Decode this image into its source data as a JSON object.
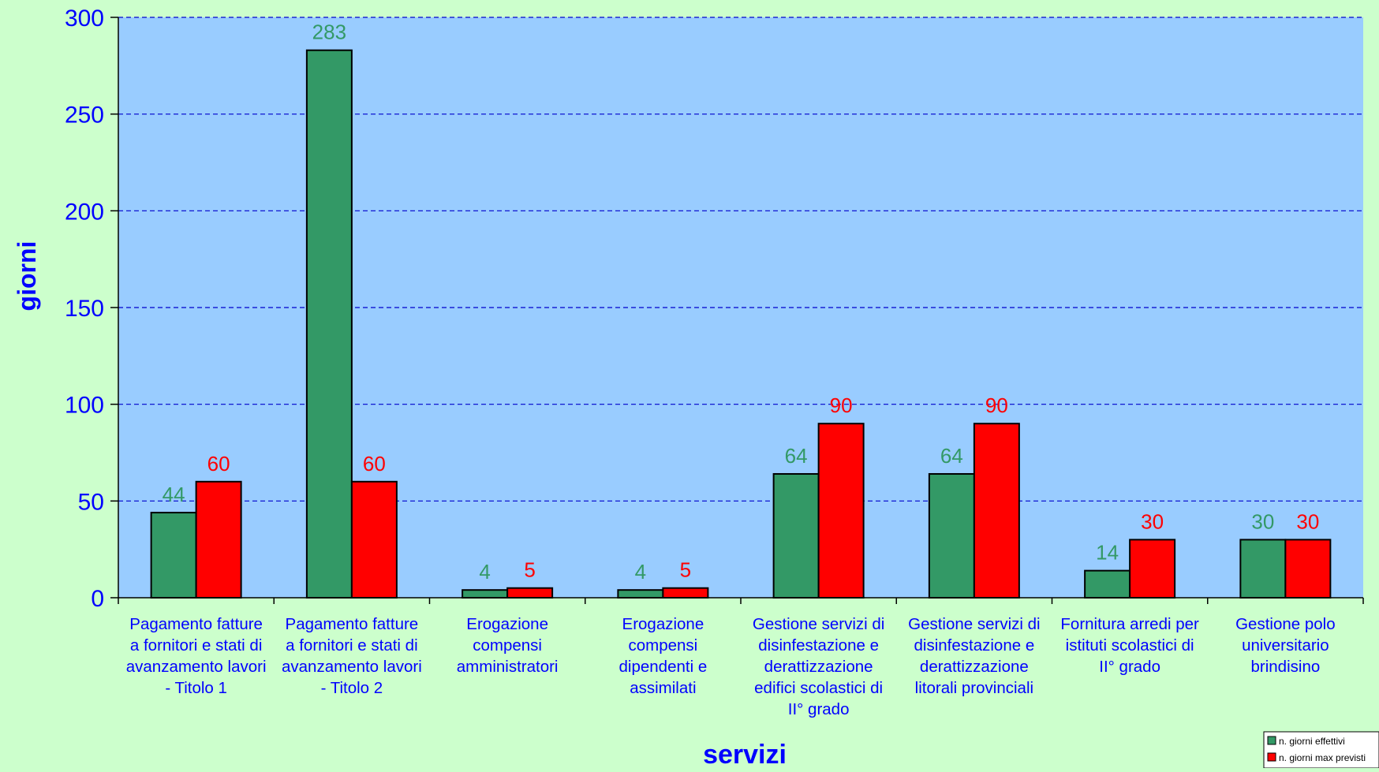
{
  "chart_data": {
    "type": "bar",
    "title": "",
    "xlabel": "servizi",
    "ylabel": "giorni",
    "ylim": [
      0,
      300
    ],
    "yticks": [
      0,
      50,
      100,
      150,
      200,
      250,
      300
    ],
    "grid": true,
    "legend_position": "bottom-right",
    "categories": [
      "Pagamento fatture a fornitori e stati di avanzamento lavori - Titolo 1",
      "Pagamento fatture a fornitori e stati di avanzamento lavori - Titolo 2",
      "Erogazione compensi amministratori",
      "Erogazione compensi dipendenti e assimilati",
      "Gestione servizi di disinfestazione e derattizzazione edifici scolastici di II° grado",
      "Gestione servizi di disinfestazione e derattizzazione litorali provinciali",
      "Fornitura arredi per istituti scolastici di II° grado",
      "Gestione polo universitario brindisino"
    ],
    "category_lines": [
      [
        "Pagamento fatture",
        "a fornitori e stati di",
        "avanzamento lavori",
        "- Titolo 1"
      ],
      [
        "Pagamento fatture",
        "a fornitori e stati di",
        "avanzamento lavori",
        "- Titolo 2"
      ],
      [
        "Erogazione",
        "compensi",
        "amministratori"
      ],
      [
        "Erogazione",
        "compensi",
        "dipendenti e",
        "assimilati"
      ],
      [
        "Gestione servizi di",
        "disinfestazione e",
        "derattizzazione",
        "edifici scolastici di",
        "II° grado"
      ],
      [
        "Gestione servizi di",
        "disinfestazione e",
        "derattizzazione",
        "litorali provinciali"
      ],
      [
        "Fornitura arredi per",
        "istituti scolastici di",
        "II° grado"
      ],
      [
        "Gestione polo",
        "universitario",
        "brindisino"
      ]
    ],
    "series": [
      {
        "name": "n. giorni effettivi",
        "values": [
          44,
          283,
          4,
          4,
          64,
          64,
          14,
          30
        ],
        "color": "#339966",
        "label_color": "#339966"
      },
      {
        "name": "n. giorni max previsti",
        "values": [
          60,
          60,
          5,
          5,
          90,
          90,
          30,
          30
        ],
        "color": "#ff0000",
        "label_color": "#ff0000"
      }
    ],
    "colors": {
      "page_background": "#ccffcc",
      "plot_background": "#99ccff",
      "axis_text": "#0000ff",
      "gridline": "#0000cc"
    }
  }
}
